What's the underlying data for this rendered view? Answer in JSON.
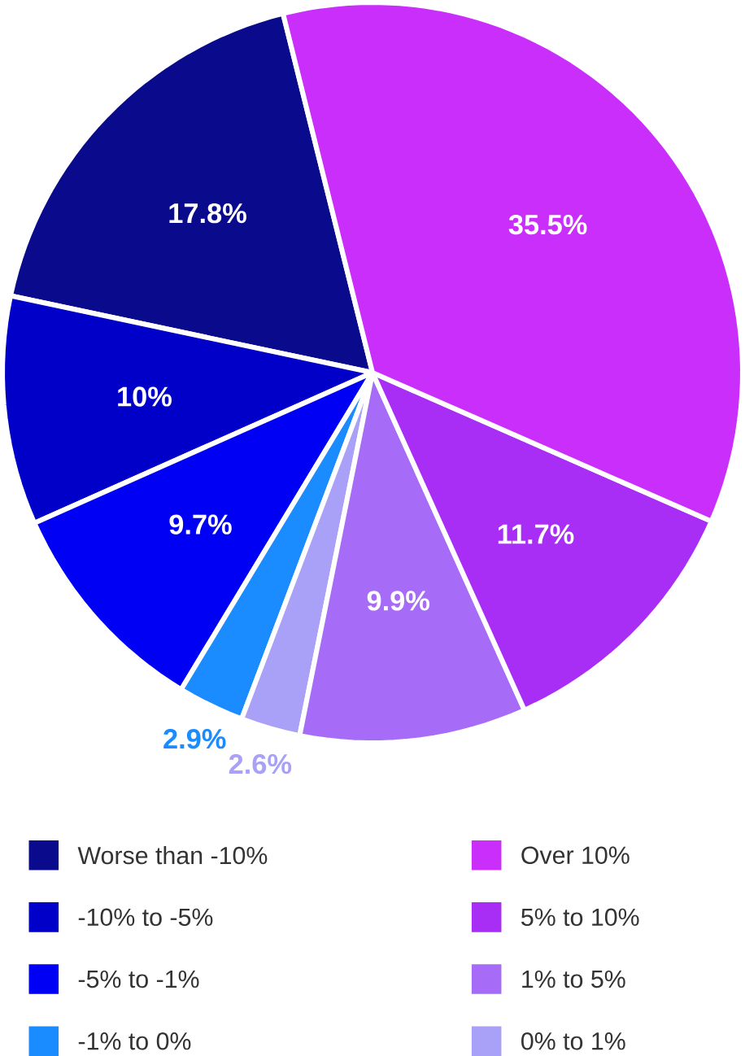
{
  "chart_data": {
    "type": "pie",
    "categories": [
      "Worse than -10%",
      "-10% to -5%",
      "-5% to -1%",
      "-1% to 0%",
      "0% to 1%",
      "1% to 5%",
      "5% to 10%",
      "Over 10%"
    ],
    "values": [
      17.8,
      10,
      9.7,
      2.9,
      2.6,
      9.9,
      11.7,
      35.5
    ],
    "value_labels": [
      "17.8%",
      "10%",
      "9.7%",
      "2.9%",
      "2.6%",
      "9.9%",
      "11.7%",
      "35.5%"
    ],
    "colors": [
      "#0a0a8c",
      "#0000c8",
      "#0000f5",
      "#1a8cff",
      "#a9a0f7",
      "#a76cf7",
      "#a92ef5",
      "#c92efa"
    ],
    "legend": "bottom"
  }
}
